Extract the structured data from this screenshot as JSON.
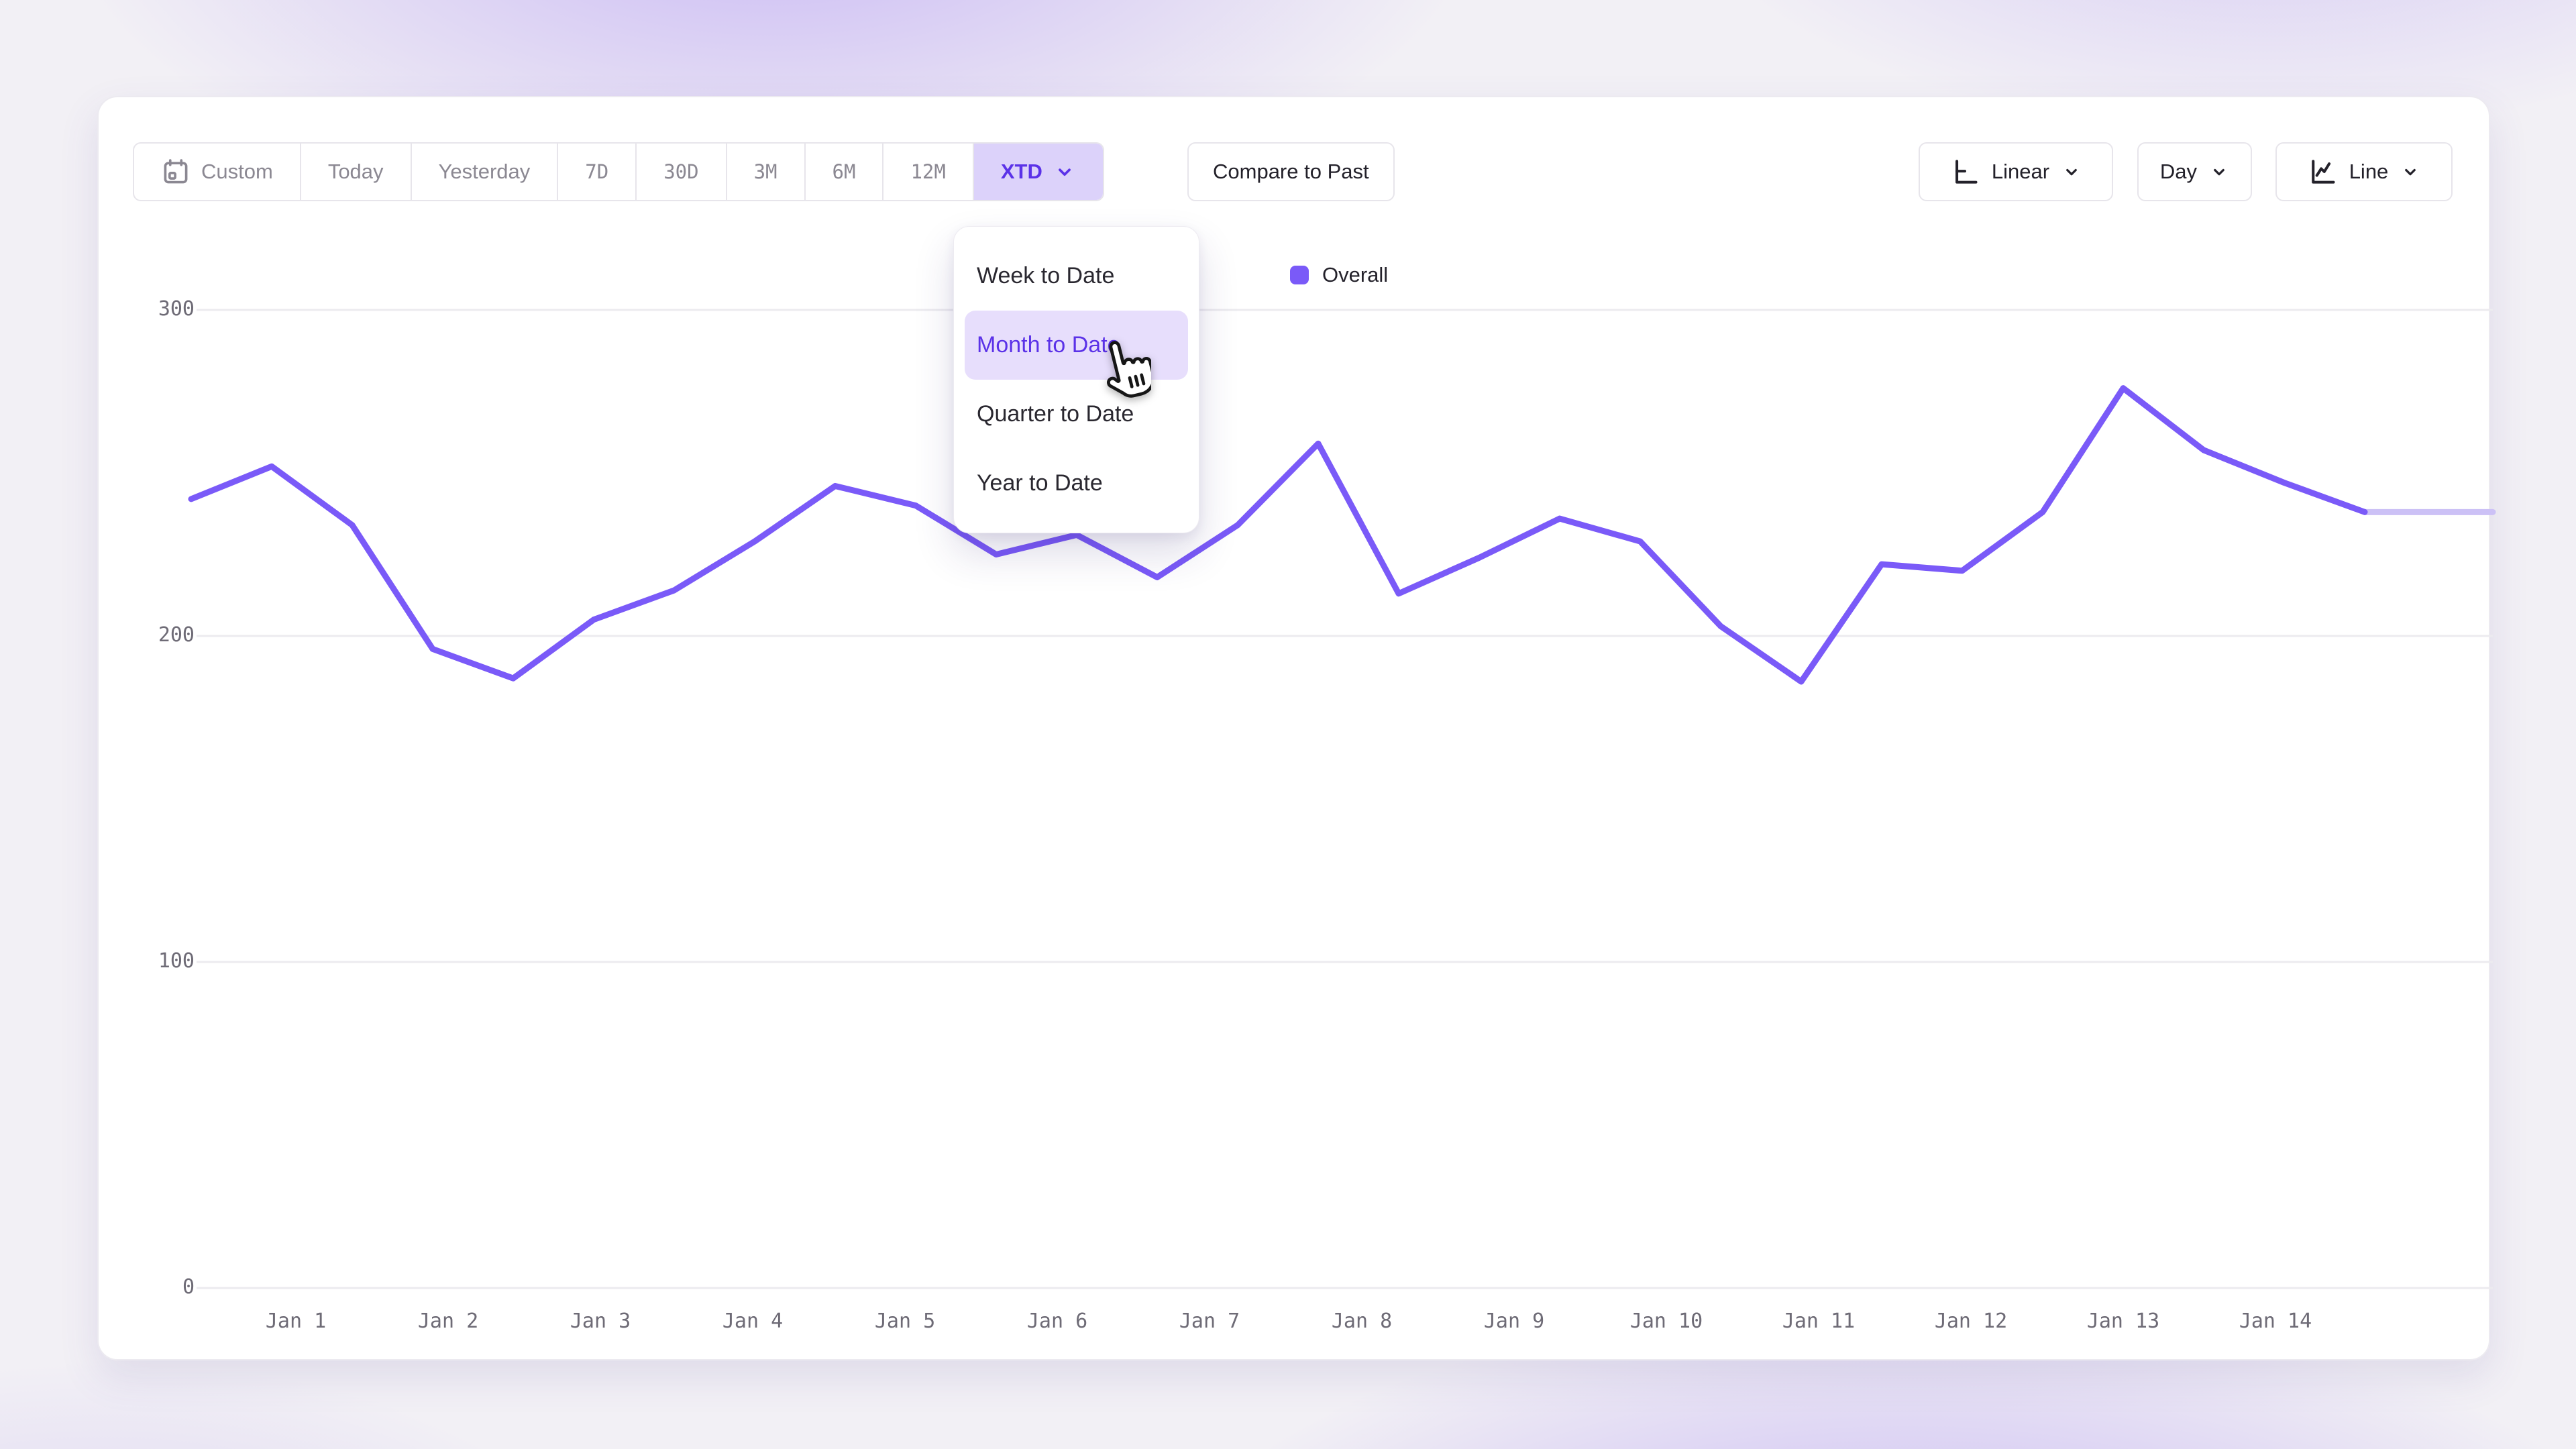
{
  "toolbar": {
    "ranges": [
      "Custom",
      "Today",
      "Yesterday",
      "7D",
      "30D",
      "3M",
      "6M",
      "12M",
      "XTD"
    ],
    "selected_range": "XTD",
    "compare_label": "Compare to Past",
    "scale_label": "Linear",
    "granularity_label": "Day",
    "chart_type_label": "Line"
  },
  "dropdown": {
    "items": [
      "Week to Date",
      "Month to Date",
      "Quarter to Date",
      "Year to Date"
    ],
    "highlighted": "Month to Date"
  },
  "legend": {
    "label": "Overall",
    "color": "#7A5AF8"
  },
  "chart_data": {
    "type": "line",
    "title": "",
    "legend_position": "top-center",
    "grid": true,
    "ylim": [
      0,
      300
    ],
    "y_ticks": [
      0,
      100,
      200,
      300
    ],
    "x_tick_labels": [
      "Jan 1",
      "Jan 2",
      "Jan 3",
      "Jan 4",
      "Jan 5",
      "Jan 6",
      "Jan 7",
      "Jan 8",
      "Jan 9",
      "Jan 10",
      "Jan 11",
      "Jan 12",
      "Jan 13",
      "Jan 14"
    ],
    "points_per_day": 2,
    "series": [
      {
        "name": "Overall",
        "color": "#7A5AF8",
        "faded_color": "#CCC1F6",
        "faded_from_index": 27,
        "values": [
          242,
          252,
          234,
          196,
          187,
          205,
          214,
          229,
          246,
          240,
          225,
          231,
          218,
          234,
          259,
          213,
          224,
          236,
          229,
          203,
          186,
          222,
          220,
          238,
          276,
          257,
          247,
          238,
          238,
          238
        ]
      }
    ]
  },
  "colors": {
    "accent": "#7A5AF8",
    "accent_faded": "#CCC1F6",
    "accent_text": "#5B32E8",
    "selected_range_bg": "#DCD2FA",
    "menu_selected_bg": "#E7DEFC",
    "panel_bg": "#FFFFFF",
    "border": "#E7E5EB",
    "text_dark": "#23212A",
    "text_gray": "#8B8892",
    "axis_text": "#6E6B76",
    "gridline": "#ECEBEF"
  }
}
